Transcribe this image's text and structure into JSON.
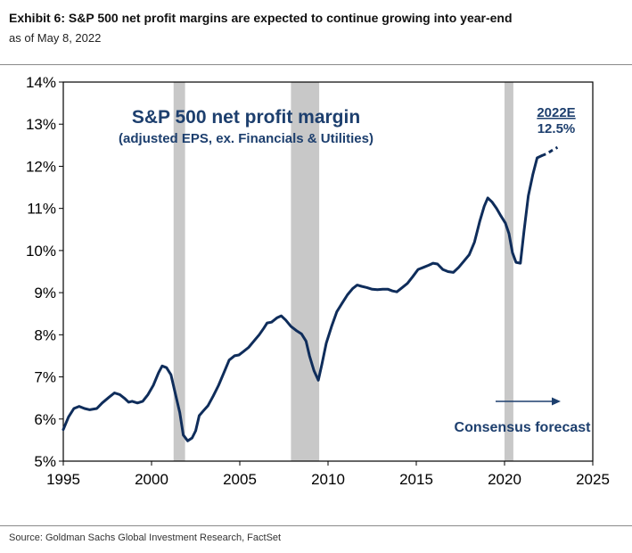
{
  "header": {
    "title": "Exhibit 6: S&P 500 net profit margins are expected to continue growing into year-end",
    "subtitle": "as of May 8, 2022"
  },
  "footer": {
    "source": "Source: Goldman Sachs Global Investment Research, FactSet"
  },
  "colors": {
    "line": "#0f2d5b",
    "recession": "#c8c8c8",
    "annotation": "#1d3f6e"
  },
  "chart_data": {
    "type": "line",
    "title": "S&P 500 net profit  margin",
    "subtitle": "(adjusted EPS, ex. Financials & Utilities)",
    "xlim": [
      1995,
      2025
    ],
    "ylim": [
      5,
      14
    ],
    "x_ticks": [
      1995,
      2000,
      2005,
      2010,
      2015,
      2020,
      2025
    ],
    "y_ticks": [
      {
        "value": 5,
        "label": "5%"
      },
      {
        "value": 6,
        "label": "6%"
      },
      {
        "value": 7,
        "label": "7%"
      },
      {
        "value": 8,
        "label": "8%"
      },
      {
        "value": 9,
        "label": "9%"
      },
      {
        "value": 10,
        "label": "10%"
      },
      {
        "value": 11,
        "label": "11%"
      },
      {
        "value": 12,
        "label": "12%"
      },
      {
        "value": 13,
        "label": "13%"
      },
      {
        "value": 14,
        "label": "14%"
      }
    ],
    "recessions": [
      [
        2001.25,
        2001.9
      ],
      [
        2007.9,
        2009.5
      ],
      [
        2020.0,
        2020.5
      ]
    ],
    "series": [
      {
        "style": "solid",
        "points": [
          [
            1995.0,
            5.75
          ],
          [
            1995.3,
            6.05
          ],
          [
            1995.6,
            6.25
          ],
          [
            1995.9,
            6.3
          ],
          [
            1996.2,
            6.25
          ],
          [
            1996.5,
            6.22
          ],
          [
            1996.9,
            6.25
          ],
          [
            1997.2,
            6.38
          ],
          [
            1997.6,
            6.52
          ],
          [
            1997.9,
            6.62
          ],
          [
            1998.2,
            6.58
          ],
          [
            1998.5,
            6.48
          ],
          [
            1998.7,
            6.4
          ],
          [
            1998.9,
            6.42
          ],
          [
            1999.2,
            6.38
          ],
          [
            1999.5,
            6.42
          ],
          [
            1999.8,
            6.58
          ],
          [
            2000.1,
            6.8
          ],
          [
            2000.4,
            7.1
          ],
          [
            2000.6,
            7.26
          ],
          [
            2000.85,
            7.22
          ],
          [
            2001.1,
            7.05
          ],
          [
            2001.35,
            6.6
          ],
          [
            2001.6,
            6.15
          ],
          [
            2001.8,
            5.62
          ],
          [
            2002.05,
            5.48
          ],
          [
            2002.3,
            5.55
          ],
          [
            2002.5,
            5.72
          ],
          [
            2002.7,
            6.08
          ],
          [
            2002.95,
            6.2
          ],
          [
            2003.2,
            6.32
          ],
          [
            2003.5,
            6.55
          ],
          [
            2003.8,
            6.8
          ],
          [
            2004.1,
            7.1
          ],
          [
            2004.4,
            7.4
          ],
          [
            2004.7,
            7.5
          ],
          [
            2004.95,
            7.52
          ],
          [
            2005.2,
            7.6
          ],
          [
            2005.5,
            7.7
          ],
          [
            2005.8,
            7.85
          ],
          [
            2006.1,
            8.0
          ],
          [
            2006.35,
            8.15
          ],
          [
            2006.55,
            8.28
          ],
          [
            2006.8,
            8.3
          ],
          [
            2007.1,
            8.4
          ],
          [
            2007.35,
            8.45
          ],
          [
            2007.6,
            8.35
          ],
          [
            2007.9,
            8.2
          ],
          [
            2008.2,
            8.1
          ],
          [
            2008.5,
            8.02
          ],
          [
            2008.75,
            7.85
          ],
          [
            2008.95,
            7.5
          ],
          [
            2009.2,
            7.15
          ],
          [
            2009.45,
            6.92
          ],
          [
            2009.65,
            7.3
          ],
          [
            2009.9,
            7.8
          ],
          [
            2010.2,
            8.2
          ],
          [
            2010.5,
            8.55
          ],
          [
            2010.8,
            8.75
          ],
          [
            2011.1,
            8.95
          ],
          [
            2011.4,
            9.1
          ],
          [
            2011.65,
            9.18
          ],
          [
            2011.9,
            9.15
          ],
          [
            2012.2,
            9.12
          ],
          [
            2012.5,
            9.08
          ],
          [
            2012.8,
            9.07
          ],
          [
            2013.1,
            9.08
          ],
          [
            2013.4,
            9.08
          ],
          [
            2013.65,
            9.04
          ],
          [
            2013.9,
            9.02
          ],
          [
            2014.2,
            9.12
          ],
          [
            2014.5,
            9.22
          ],
          [
            2014.8,
            9.38
          ],
          [
            2015.1,
            9.55
          ],
          [
            2015.4,
            9.6
          ],
          [
            2015.7,
            9.65
          ],
          [
            2015.95,
            9.7
          ],
          [
            2016.2,
            9.68
          ],
          [
            2016.5,
            9.55
          ],
          [
            2016.8,
            9.5
          ],
          [
            2017.1,
            9.48
          ],
          [
            2017.4,
            9.6
          ],
          [
            2017.7,
            9.75
          ],
          [
            2018.0,
            9.9
          ],
          [
            2018.3,
            10.2
          ],
          [
            2018.6,
            10.7
          ],
          [
            2018.85,
            11.05
          ],
          [
            2019.05,
            11.25
          ],
          [
            2019.3,
            11.15
          ],
          [
            2019.55,
            11.0
          ],
          [
            2019.8,
            10.82
          ],
          [
            2020.05,
            10.65
          ],
          [
            2020.25,
            10.4
          ],
          [
            2020.45,
            9.95
          ],
          [
            2020.65,
            9.72
          ],
          [
            2020.9,
            9.7
          ],
          [
            2021.1,
            10.45
          ],
          [
            2021.35,
            11.3
          ],
          [
            2021.6,
            11.8
          ],
          [
            2021.85,
            12.2
          ],
          [
            2022.1,
            12.25
          ]
        ]
      },
      {
        "style": "dashed",
        "points": [
          [
            2022.1,
            12.25
          ],
          [
            2022.4,
            12.3
          ],
          [
            2022.7,
            12.38
          ],
          [
            2023.0,
            12.45
          ]
        ]
      }
    ],
    "annotations": {
      "year_label": "2022E",
      "year_value": "12.5%",
      "forecast_label": "Consensus forecast"
    }
  }
}
